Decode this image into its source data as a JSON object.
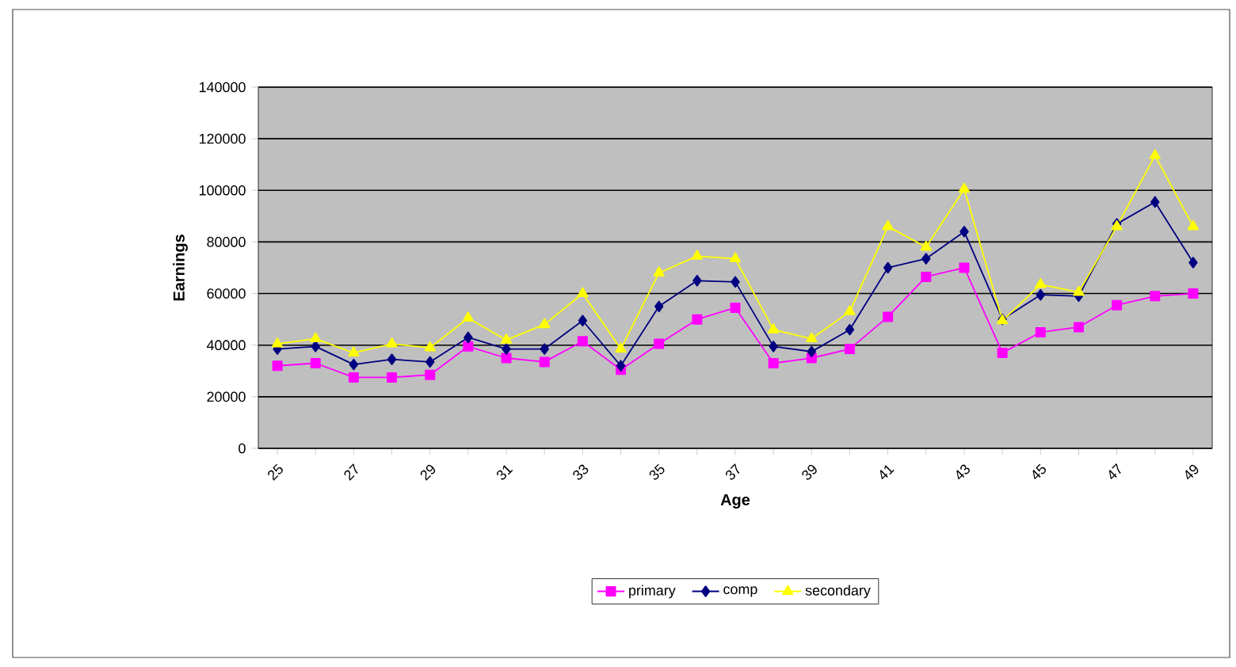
{
  "chart_data": {
    "type": "line",
    "xlabel": "Age",
    "ylabel": "Earnings",
    "categories": [
      "25",
      null,
      "27",
      null,
      "29",
      null,
      "31",
      null,
      "33",
      null,
      "35",
      null,
      "37",
      null,
      "39",
      null,
      "41",
      null,
      "43",
      null,
      "45",
      null,
      "47",
      null,
      "49"
    ],
    "series": [
      {
        "name": "primary",
        "color": "#ff00ff",
        "marker": "square",
        "values": [
          32000,
          33000,
          27500,
          27500,
          28500,
          39500,
          35000,
          33500,
          41500,
          30500,
          40500,
          50000,
          54500,
          33000,
          35000,
          38500,
          51000,
          66500,
          70000,
          37000,
          45000,
          47000,
          55500,
          59000,
          60000
        ]
      },
      {
        "name": "comp",
        "color": "#000080",
        "marker": "diamond",
        "values": [
          38500,
          39500,
          32500,
          34500,
          33500,
          43000,
          38500,
          38500,
          49500,
          32000,
          55000,
          65000,
          64500,
          39500,
          37500,
          46000,
          70000,
          73500,
          84000,
          50000,
          59500,
          59000,
          87000,
          95500,
          72000
        ]
      },
      {
        "name": "secondary",
        "color": "#ffff00",
        "marker": "triangle",
        "values": [
          40500,
          42500,
          37000,
          40500,
          39000,
          50500,
          42000,
          48000,
          60000,
          38500,
          68000,
          74500,
          73500,
          46000,
          42500,
          53000,
          86000,
          78000,
          100500,
          49500,
          63500,
          60500,
          86000,
          113500,
          86000
        ]
      }
    ],
    "ylim": [
      0,
      140000
    ],
    "yticks": [
      0,
      20000,
      40000,
      60000,
      80000,
      100000,
      120000,
      140000
    ],
    "grid": "y",
    "legend": "bottom",
    "line_style": "solid"
  }
}
